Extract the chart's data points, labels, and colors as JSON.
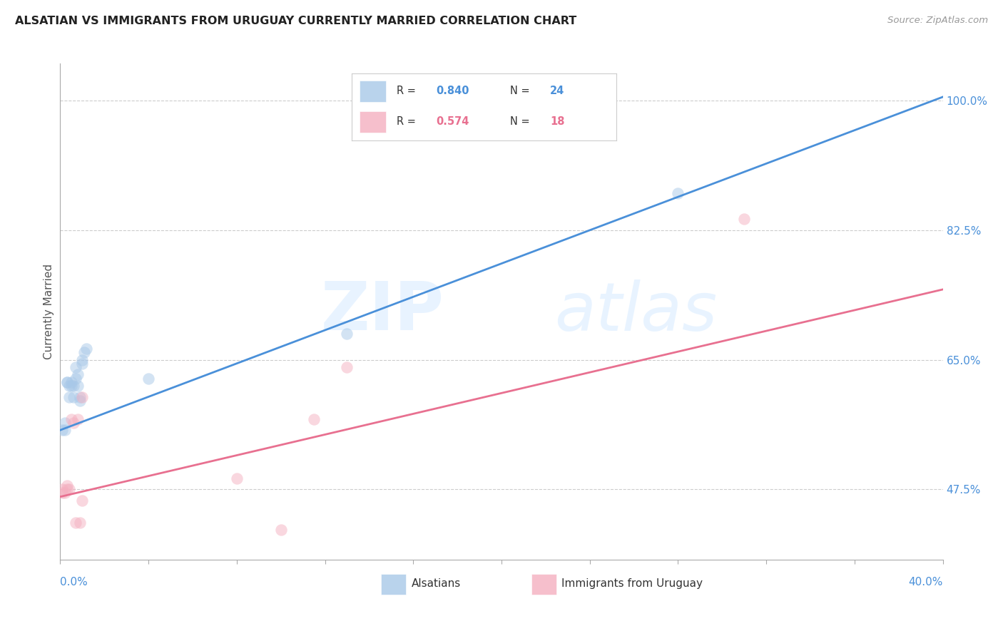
{
  "title": "ALSATIAN VS IMMIGRANTS FROM URUGUAY CURRENTLY MARRIED CORRELATION CHART",
  "source": "Source: ZipAtlas.com",
  "ylabel": "Currently Married",
  "ytick_labels": [
    "47.5%",
    "65.0%",
    "82.5%",
    "100.0%"
  ],
  "ytick_values": [
    0.475,
    0.65,
    0.825,
    1.0
  ],
  "xlim": [
    0.0,
    0.4
  ],
  "ylim": [
    0.38,
    1.05
  ],
  "legend_blue_r": "0.840",
  "legend_blue_n": "24",
  "legend_pink_r": "0.574",
  "legend_pink_n": "18",
  "legend_label_blue": "Alsatians",
  "legend_label_pink": "Immigrants from Uruguay",
  "blue_color": "#a8c8e8",
  "pink_color": "#f4b0c0",
  "blue_line_color": "#4a90d9",
  "pink_line_color": "#e87090",
  "watermark_zip": "ZIP",
  "watermark_atlas": "atlas",
  "blue_scatter_x": [
    0.001,
    0.002,
    0.002,
    0.003,
    0.003,
    0.004,
    0.004,
    0.005,
    0.005,
    0.006,
    0.006,
    0.007,
    0.007,
    0.008,
    0.008,
    0.009,
    0.009,
    0.01,
    0.01,
    0.011,
    0.012,
    0.04,
    0.13,
    0.28
  ],
  "blue_scatter_y": [
    0.555,
    0.555,
    0.565,
    0.62,
    0.62,
    0.615,
    0.6,
    0.62,
    0.615,
    0.615,
    0.6,
    0.625,
    0.64,
    0.63,
    0.615,
    0.6,
    0.595,
    0.65,
    0.645,
    0.66,
    0.665,
    0.625,
    0.685,
    0.875
  ],
  "pink_scatter_x": [
    0.001,
    0.001,
    0.002,
    0.003,
    0.003,
    0.004,
    0.005,
    0.006,
    0.007,
    0.008,
    0.009,
    0.01,
    0.01,
    0.08,
    0.1,
    0.115,
    0.13,
    0.31
  ],
  "pink_scatter_y": [
    0.47,
    0.475,
    0.47,
    0.475,
    0.48,
    0.475,
    0.57,
    0.565,
    0.43,
    0.57,
    0.43,
    0.46,
    0.6,
    0.49,
    0.42,
    0.57,
    0.64,
    0.84
  ],
  "blue_line_x": [
    0.0,
    0.4
  ],
  "blue_line_y": [
    0.555,
    1.005
  ],
  "pink_line_x": [
    0.0,
    0.4
  ],
  "pink_line_y": [
    0.465,
    0.745
  ],
  "marker_size": 140,
  "marker_alpha": 0.5
}
